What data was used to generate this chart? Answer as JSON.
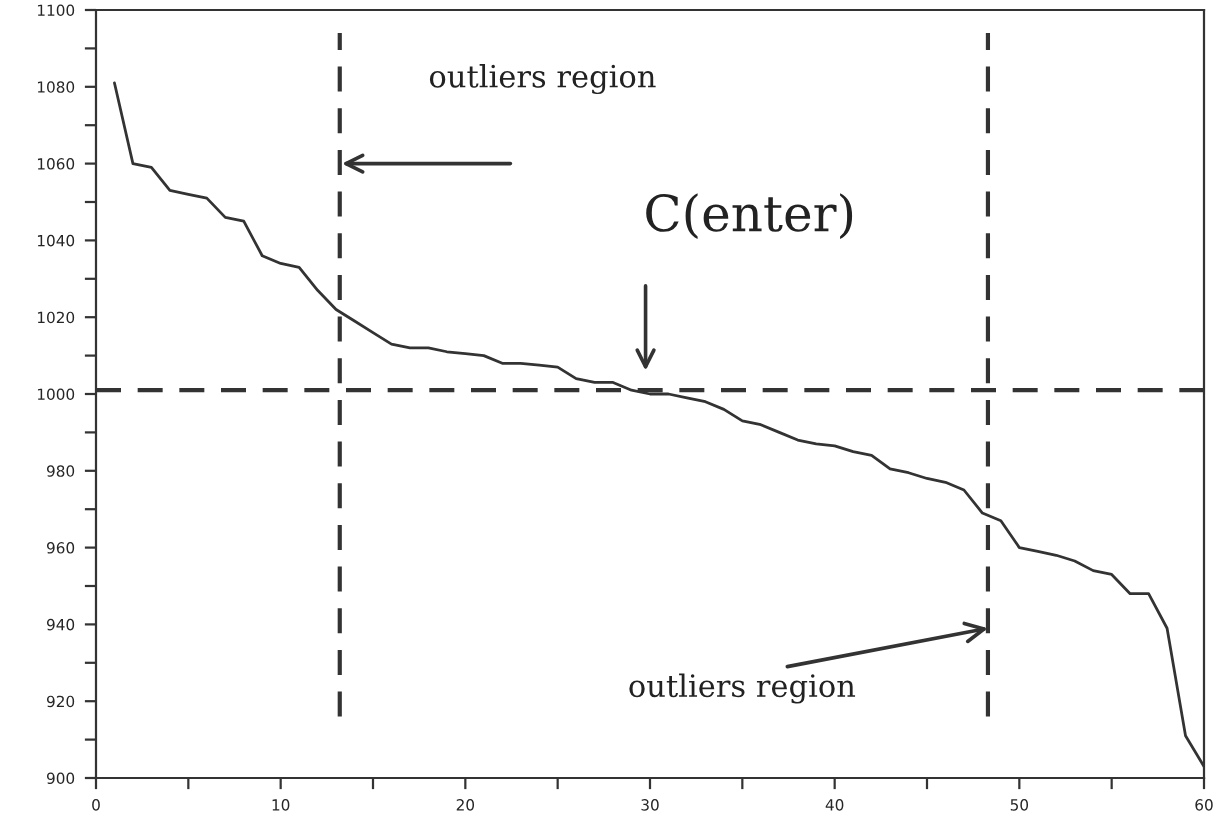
{
  "chart_data": {
    "type": "line",
    "x": [
      1,
      2,
      3,
      4,
      5,
      6,
      7,
      8,
      9,
      10,
      11,
      12,
      13,
      14,
      15,
      16,
      17,
      18,
      19,
      20,
      21,
      22,
      23,
      24,
      25,
      26,
      27,
      28,
      29,
      30,
      31,
      32,
      33,
      34,
      35,
      36,
      37,
      38,
      39,
      40,
      41,
      42,
      43,
      44,
      45,
      46,
      47,
      48,
      49,
      50,
      51,
      52,
      53,
      54,
      55,
      56,
      57,
      58,
      59,
      60
    ],
    "series": [
      {
        "color": "#333333",
        "values": [
          1081,
          1060,
          1059,
          1053,
          1052,
          1051,
          1046,
          1045,
          1036,
          1034,
          1033,
          1027,
          1022,
          1019,
          1016,
          1013,
          1012,
          1012,
          1011,
          1010.5,
          1010,
          1008,
          1008,
          1007.5,
          1007,
          1004,
          1003,
          1003,
          1001,
          1000,
          1000,
          999,
          998,
          996,
          993,
          992,
          990,
          988,
          987,
          986.5,
          985,
          984,
          980.5,
          979.5,
          978,
          977,
          975,
          969,
          967,
          960,
          959,
          958,
          956.5,
          954,
          953,
          948,
          948,
          939,
          911,
          903
        ]
      }
    ],
    "xlim": [
      0,
      60
    ],
    "ylim": [
      900,
      1100
    ],
    "xticks": [
      0,
      {
        "value": 5,
        "label": null
      },
      10,
      {
        "value": 15,
        "label": null
      },
      20,
      {
        "value": 25,
        "label": null
      },
      30,
      {
        "value": 35,
        "label": null
      },
      40,
      {
        "value": 45,
        "label": null
      },
      50,
      {
        "value": 55,
        "label": null
      },
      60
    ],
    "yticks": [
      900,
      {
        "value": 910,
        "label": null
      },
      920,
      {
        "value": 930,
        "label": null
      },
      940,
      {
        "value": 950,
        "label": null
      },
      960,
      {
        "value": 970,
        "label": null
      },
      980,
      {
        "value": 990,
        "label": null
      },
      1000,
      {
        "value": 1010,
        "label": null
      },
      1020,
      {
        "value": 1030,
        "label": null
      },
      1040,
      {
        "value": 1050,
        "label": null
      },
      1060,
      {
        "value": 1070,
        "label": null
      },
      1080,
      {
        "value": 1090,
        "label": null
      },
      1100
    ],
    "ref_lines": [
      {
        "axis": "x",
        "value": 13.2,
        "color": "#333333",
        "line_style": "dashed"
      },
      {
        "axis": "x",
        "value": 48.3,
        "color": "#333333",
        "line_style": "dashed"
      },
      {
        "axis": "y",
        "value": 1001,
        "color": "#333333",
        "line_style": "dashed"
      }
    ],
    "annotations": [
      "outliers region",
      "C(enter)",
      {
        "text": "outliers region",
        "x": 48.3,
        "y": 939
      }
    ],
    "line_style": "solid",
    "marker": "none",
    "grid": false,
    "legend": false
  }
}
